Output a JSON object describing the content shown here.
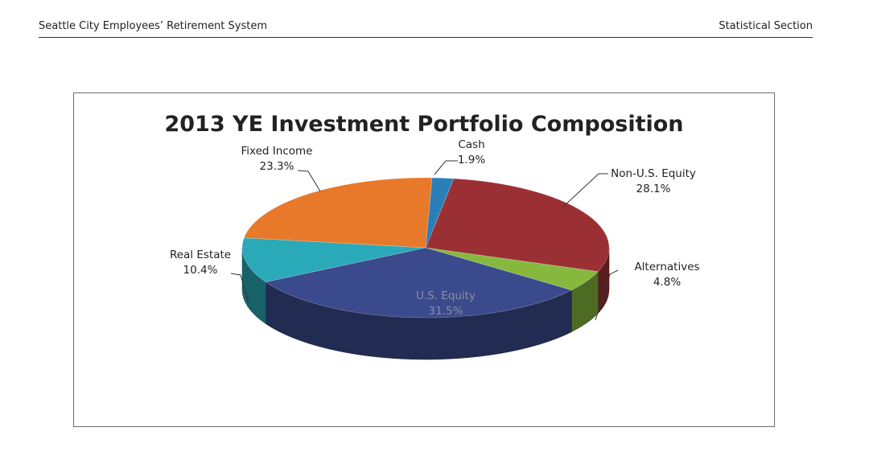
{
  "header": {
    "left": "Seattle City Employees’ Retirement System",
    "right": "Statistical Section"
  },
  "chart_data": {
    "type": "pie",
    "title": "2013 YE Investment Portfolio Composition",
    "style": "3d",
    "slices": [
      {
        "name": "Cash",
        "value": 1.9,
        "label": "1.9%",
        "color": "#2a7fb8"
      },
      {
        "name": "Non-U.S. Equity",
        "value": 28.1,
        "label": "28.1%",
        "color": "#9b3034"
      },
      {
        "name": "Alternatives",
        "value": 4.8,
        "label": "4.8%",
        "color": "#86b83e"
      },
      {
        "name": "U.S. Equity",
        "value": 31.5,
        "label": "31.5%",
        "color": "#3a4a8c"
      },
      {
        "name": "Real Estate",
        "value": 10.4,
        "label": "10.4%",
        "color": "#2aa9b9"
      },
      {
        "name": "Fixed Income",
        "value": 23.3,
        "label": "23.3%",
        "color": "#e8792a"
      }
    ]
  }
}
